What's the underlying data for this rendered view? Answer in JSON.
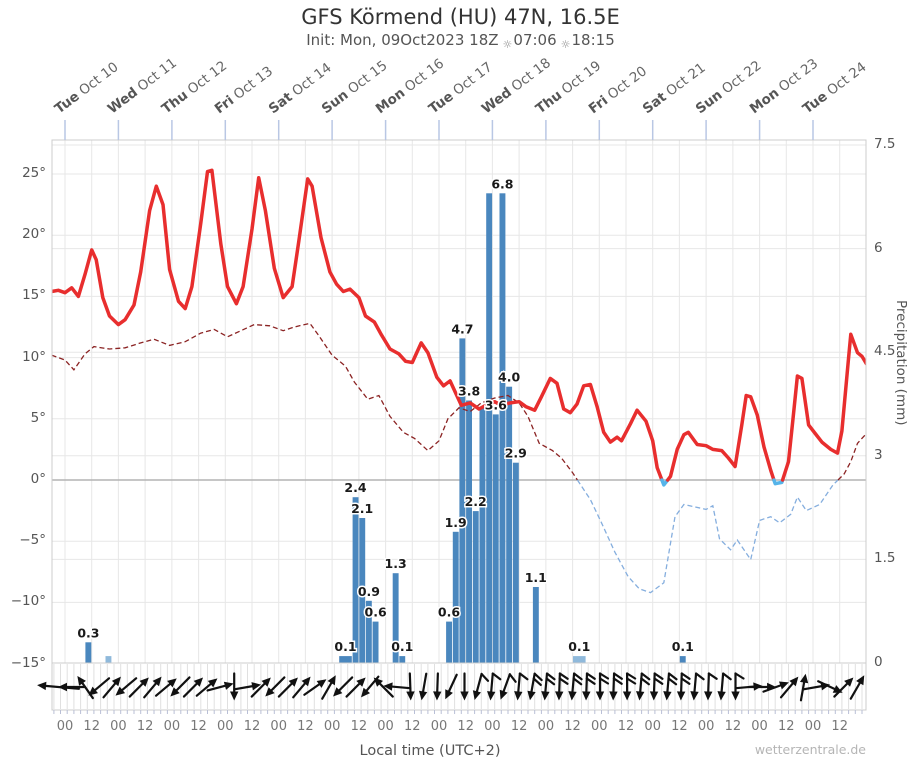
{
  "title": "GFS Körmend (HU) 47N, 16.5E",
  "subtitle": {
    "init": "Init: Mon, 09Oct2023 18Z",
    "sunrise_time": "07:06",
    "sunset_time": "18:15"
  },
  "icons": {
    "sunrise": "☼",
    "sunset": "☼"
  },
  "watermark": "wetterzentrale.de",
  "bottom_axis": {
    "xlabel": "Local time (UTC+2)",
    "labels": [
      "00",
      "12",
      "00",
      "12",
      "00",
      "12",
      "00",
      "12",
      "00",
      "12",
      "00",
      "12",
      "00",
      "12",
      "00",
      "12",
      "00",
      "12",
      "00",
      "12",
      "00",
      "12",
      "00",
      "12",
      "00",
      "12",
      "00",
      "12",
      "00",
      "12"
    ]
  },
  "top_axis": {
    "days": [
      {
        "dow": "Tue",
        "date": "Oct 10"
      },
      {
        "dow": "Wed",
        "date": "Oct 11"
      },
      {
        "dow": "Thu",
        "date": "Oct 12"
      },
      {
        "dow": "Fri",
        "date": "Oct 13"
      },
      {
        "dow": "Sat",
        "date": "Oct 14"
      },
      {
        "dow": "Sun",
        "date": "Oct 15"
      },
      {
        "dow": "Mon",
        "date": "Oct 16"
      },
      {
        "dow": "Tue",
        "date": "Oct 17"
      },
      {
        "dow": "Wed",
        "date": "Oct 18"
      },
      {
        "dow": "Thu",
        "date": "Oct 19"
      },
      {
        "dow": "Fri",
        "date": "Oct 20"
      },
      {
        "dow": "Sat",
        "date": "Oct 21"
      },
      {
        "dow": "Sun",
        "date": "Oct 22"
      },
      {
        "dow": "Mon",
        "date": "Oct 23"
      },
      {
        "dow": "Tue",
        "date": "Oct 24"
      }
    ]
  },
  "axes": {
    "temp_ticks": [
      {
        "v": 25,
        "label": "25°"
      },
      {
        "v": 20,
        "label": "20°"
      },
      {
        "v": 15,
        "label": "15°"
      },
      {
        "v": 10,
        "label": "10°"
      },
      {
        "v": 5,
        "label": "5°"
      },
      {
        "v": 0,
        "label": "0°"
      },
      {
        "v": -5,
        "label": "−5°"
      },
      {
        "v": -10,
        "label": "−10°"
      },
      {
        "v": -15,
        "label": "−15°"
      }
    ],
    "precip_ticks": [
      {
        "v": 7.5,
        "label": "7.5"
      },
      {
        "v": 6,
        "label": "6"
      },
      {
        "v": 4.5,
        "label": "4.5"
      },
      {
        "v": 3,
        "label": "3"
      },
      {
        "v": 1.5,
        "label": "1.5"
      },
      {
        "v": 0,
        "label": "0"
      }
    ],
    "precip_axis_label": "Precipitation (mm)"
  },
  "colors": {
    "temp_line": "#e82e2e",
    "temp_below_zero": "#56b4e9",
    "dewpoint_line": "#8b2323",
    "dewpoint_below_zero": "#85aede",
    "precip_bar": "#4a87be",
    "precip_bar_light": "#8fb9db",
    "grid": "#e7e7e7",
    "zero_line": "#b3b3b3",
    "frame": "#cccccc",
    "top_tick": "#b9c7e4",
    "arrow": "#111111"
  },
  "chart_data": {
    "type": "meteogram (line + bar)",
    "title": "GFS Körmend (HU) 47N, 16.5E",
    "x_axis": "Local time (UTC+2), hours since Oct 10 00:00, range -6 to 360",
    "y_left": {
      "label": "Temperature °C",
      "range": [
        -15,
        27.8
      ]
    },
    "y_right": {
      "label": "Precipitation (mm)",
      "range": [
        0,
        7.57
      ]
    },
    "series": [
      {
        "name": "2m temperature (°C)",
        "style": "solid red, light-blue below 0°C",
        "points": [
          [
            -6,
            15.4
          ],
          [
            -3,
            15.5
          ],
          [
            0,
            15.3
          ],
          [
            3,
            15.7
          ],
          [
            6,
            15.0
          ],
          [
            9,
            16.8
          ],
          [
            12,
            18.8
          ],
          [
            14,
            18.0
          ],
          [
            17,
            14.9
          ],
          [
            20,
            13.4
          ],
          [
            24,
            12.7
          ],
          [
            27,
            13.1
          ],
          [
            31,
            14.3
          ],
          [
            34,
            17.0
          ],
          [
            38,
            22.0
          ],
          [
            41,
            24.0
          ],
          [
            44,
            22.5
          ],
          [
            47,
            17.2
          ],
          [
            51,
            14.6
          ],
          [
            54,
            14.0
          ],
          [
            57,
            15.8
          ],
          [
            61,
            21.0
          ],
          [
            64,
            25.2
          ],
          [
            66,
            25.3
          ],
          [
            70,
            19.3
          ],
          [
            73,
            15.8
          ],
          [
            77,
            14.4
          ],
          [
            80,
            15.8
          ],
          [
            84,
            20.5
          ],
          [
            87,
            24.7
          ],
          [
            90,
            22.0
          ],
          [
            94,
            17.3
          ],
          [
            98,
            14.9
          ],
          [
            102,
            15.8
          ],
          [
            105,
            19.5
          ],
          [
            109,
            24.6
          ],
          [
            111,
            24.0
          ],
          [
            115,
            19.8
          ],
          [
            119,
            17.0
          ],
          [
            122,
            16.0
          ],
          [
            125,
            15.4
          ],
          [
            128,
            15.6
          ],
          [
            132,
            14.9
          ],
          [
            135,
            13.4
          ],
          [
            139,
            12.9
          ],
          [
            142,
            11.9
          ],
          [
            146,
            10.7
          ],
          [
            150,
            10.3
          ],
          [
            153,
            9.7
          ],
          [
            156,
            9.6
          ],
          [
            160,
            11.2
          ],
          [
            163,
            10.4
          ],
          [
            167,
            8.4
          ],
          [
            170,
            7.7
          ],
          [
            173,
            8.1
          ],
          [
            176,
            6.9
          ],
          [
            178,
            6.1
          ],
          [
            182,
            6.3
          ],
          [
            186,
            5.8
          ],
          [
            189,
            6.1
          ],
          [
            193,
            6.4
          ],
          [
            196,
            6.1
          ],
          [
            200,
            6.3
          ],
          [
            204,
            6.4
          ],
          [
            207,
            6.0
          ],
          [
            211,
            5.7
          ],
          [
            214,
            6.8
          ],
          [
            218,
            8.3
          ],
          [
            221,
            7.9
          ],
          [
            224,
            5.8
          ],
          [
            227,
            5.5
          ],
          [
            230,
            6.2
          ],
          [
            233,
            7.7
          ],
          [
            236,
            7.8
          ],
          [
            239,
            6.0
          ],
          [
            242,
            3.9
          ],
          [
            245,
            3.1
          ],
          [
            248,
            3.5
          ],
          [
            250,
            3.2
          ],
          [
            254,
            4.6
          ],
          [
            257,
            5.7
          ],
          [
            261,
            4.8
          ],
          [
            264,
            3.2
          ],
          [
            266,
            1.0
          ],
          [
            269,
            -0.4
          ],
          [
            272,
            0.3
          ],
          [
            275,
            2.5
          ],
          [
            278,
            3.7
          ],
          [
            280,
            3.9
          ],
          [
            284,
            2.9
          ],
          [
            288,
            2.8
          ],
          [
            291,
            2.5
          ],
          [
            295,
            2.4
          ],
          [
            298,
            1.8
          ],
          [
            301,
            1.1
          ],
          [
            304,
            4.5
          ],
          [
            306,
            6.9
          ],
          [
            308,
            6.8
          ],
          [
            311,
            5.3
          ],
          [
            314,
            2.7
          ],
          [
            317,
            0.8
          ],
          [
            319,
            -0.3
          ],
          [
            322,
            -0.2
          ],
          [
            325,
            1.5
          ],
          [
            327,
            5.0
          ],
          [
            329,
            8.5
          ],
          [
            331,
            8.3
          ],
          [
            334,
            4.5
          ],
          [
            337,
            3.8
          ],
          [
            340,
            3.1
          ],
          [
            344,
            2.5
          ],
          [
            347,
            2.2
          ],
          [
            349,
            4.0
          ],
          [
            352,
            10.0
          ],
          [
            353,
            11.9
          ],
          [
            356,
            10.4
          ],
          [
            358,
            10.1
          ],
          [
            360,
            9.5
          ]
        ]
      },
      {
        "name": "dew point (°C)",
        "style": "dashed dark-red, light-blue dashed below 0°C",
        "points": [
          [
            -6,
            10.2
          ],
          [
            0,
            9.8
          ],
          [
            4,
            9.0
          ],
          [
            9,
            10.3
          ],
          [
            13,
            10.9
          ],
          [
            20,
            10.7
          ],
          [
            27,
            10.8
          ],
          [
            34,
            11.2
          ],
          [
            40,
            11.5
          ],
          [
            47,
            11.0
          ],
          [
            54,
            11.3
          ],
          [
            61,
            12.0
          ],
          [
            67,
            12.3
          ],
          [
            73,
            11.7
          ],
          [
            79,
            12.2
          ],
          [
            85,
            12.7
          ],
          [
            92,
            12.6
          ],
          [
            98,
            12.2
          ],
          [
            103,
            12.5
          ],
          [
            110,
            12.8
          ],
          [
            114,
            11.8
          ],
          [
            120,
            10.2
          ],
          [
            126,
            9.3
          ],
          [
            130,
            8.0
          ],
          [
            136,
            6.6
          ],
          [
            141,
            6.9
          ],
          [
            146,
            5.2
          ],
          [
            152,
            3.9
          ],
          [
            157,
            3.4
          ],
          [
            163,
            2.4
          ],
          [
            168,
            3.2
          ],
          [
            172,
            5.0
          ],
          [
            177,
            5.9
          ],
          [
            182,
            5.6
          ],
          [
            187,
            6.3
          ],
          [
            193,
            6.7
          ],
          [
            199,
            6.9
          ],
          [
            204,
            6.3
          ],
          [
            208,
            5.2
          ],
          [
            213,
            3.0
          ],
          [
            219,
            2.4
          ],
          [
            223,
            1.8
          ],
          [
            228,
            0.6
          ],
          [
            236,
            -1.6
          ],
          [
            241,
            -3.5
          ],
          [
            247,
            -5.9
          ],
          [
            253,
            -7.9
          ],
          [
            258,
            -8.9
          ],
          [
            263,
            -9.2
          ],
          [
            269,
            -8.4
          ],
          [
            274,
            -3.0
          ],
          [
            278,
            -2.0
          ],
          [
            283,
            -2.2
          ],
          [
            288,
            -2.4
          ],
          [
            291,
            -2.1
          ],
          [
            294,
            -4.8
          ],
          [
            299,
            -5.7
          ],
          [
            302,
            -4.9
          ],
          [
            308,
            -6.5
          ],
          [
            312,
            -3.3
          ],
          [
            317,
            -3.0
          ],
          [
            321,
            -3.5
          ],
          [
            326,
            -2.8
          ],
          [
            329,
            -1.4
          ],
          [
            333,
            -2.5
          ],
          [
            339,
            -2.0
          ],
          [
            345,
            -0.4
          ],
          [
            350,
            0.5
          ],
          [
            353,
            1.5
          ],
          [
            356,
            3.0
          ],
          [
            360,
            3.8
          ]
        ]
      }
    ],
    "precipitation_bars_3h_mm": [
      {
        "t": 9,
        "mm": 0.3,
        "label": "0.3"
      },
      {
        "t": 18,
        "mm": 0.1,
        "light": true
      },
      {
        "t": 123,
        "mm": 0.1,
        "label": "0.1",
        "dur": 6
      },
      {
        "t": 129,
        "mm": 2.4,
        "label": "2.4"
      },
      {
        "t": 132,
        "mm": 2.1,
        "label": "2.1"
      },
      {
        "t": 135,
        "mm": 0.9,
        "label": "0.9"
      },
      {
        "t": 138,
        "mm": 0.6,
        "label": "0.6"
      },
      {
        "t": 147,
        "mm": 1.3,
        "label": "1.3"
      },
      {
        "t": 150,
        "mm": 0.1,
        "label": "0.1"
      },
      {
        "t": 171,
        "mm": 0.6,
        "label": "0.6"
      },
      {
        "t": 174,
        "mm": 1.9,
        "label": "1.9"
      },
      {
        "t": 177,
        "mm": 4.7,
        "label": "4.7"
      },
      {
        "t": 180,
        "mm": 3.8,
        "label": "3.8"
      },
      {
        "t": 183,
        "mm": 2.2,
        "label": "2.2"
      },
      {
        "t": 186,
        "mm": 3.7
      },
      {
        "t": 189,
        "mm": 6.8
      },
      {
        "t": 192,
        "mm": 3.6,
        "label": "3.6"
      },
      {
        "t": 195,
        "mm": 6.8,
        "label": "6.8"
      },
      {
        "t": 198,
        "mm": 4.0,
        "label": "4.0"
      },
      {
        "t": 201,
        "mm": 2.9,
        "label": "2.9"
      },
      {
        "t": 210,
        "mm": 1.1,
        "label": "1.1"
      },
      {
        "t": 228,
        "mm": 0.1,
        "label": "0.1",
        "light": true,
        "dur": 6
      },
      {
        "t": 276,
        "mm": 0.1,
        "label": "0.1"
      }
    ],
    "wind_arrows_deg_barbs": [
      [
        185,
        0,
        42
      ],
      [
        180,
        0
      ],
      [
        235,
        0
      ],
      [
        140,
        0
      ],
      [
        310,
        0
      ],
      [
        140,
        0
      ],
      [
        315,
        0
      ],
      [
        310,
        0
      ],
      [
        320,
        0
      ],
      [
        135,
        0
      ],
      [
        315,
        0
      ],
      [
        320,
        0
      ],
      [
        345,
        0
      ],
      [
        90,
        0
      ],
      [
        350,
        0
      ],
      [
        315,
        0
      ],
      [
        135,
        0
      ],
      [
        315,
        0
      ],
      [
        310,
        0
      ],
      [
        325,
        0
      ],
      [
        300,
        0
      ],
      [
        135,
        0
      ],
      [
        315,
        0
      ],
      [
        130,
        0
      ],
      [
        225,
        0
      ],
      [
        185,
        0
      ],
      [
        88,
        0
      ],
      [
        100,
        0
      ],
      [
        92,
        0
      ],
      [
        115,
        0
      ],
      [
        90,
        0
      ],
      [
        105,
        1
      ],
      [
        95,
        1
      ],
      [
        110,
        1
      ],
      [
        95,
        1
      ],
      [
        100,
        2
      ],
      [
        95,
        2
      ],
      [
        92,
        2
      ],
      [
        95,
        2
      ],
      [
        92,
        2
      ],
      [
        90,
        2
      ],
      [
        92,
        2
      ],
      [
        90,
        2
      ],
      [
        95,
        2
      ],
      [
        92,
        2
      ],
      [
        95,
        2
      ],
      [
        92,
        2
      ],
      [
        95,
        1
      ],
      [
        92,
        1
      ],
      [
        95,
        1
      ],
      [
        90,
        1
      ],
      [
        355,
        0
      ],
      [
        0,
        0
      ],
      [
        340,
        0
      ],
      [
        310,
        0
      ],
      [
        280,
        0
      ],
      [
        350,
        0
      ],
      [
        25,
        0
      ],
      [
        315,
        0
      ],
      [
        300,
        0
      ]
    ]
  }
}
